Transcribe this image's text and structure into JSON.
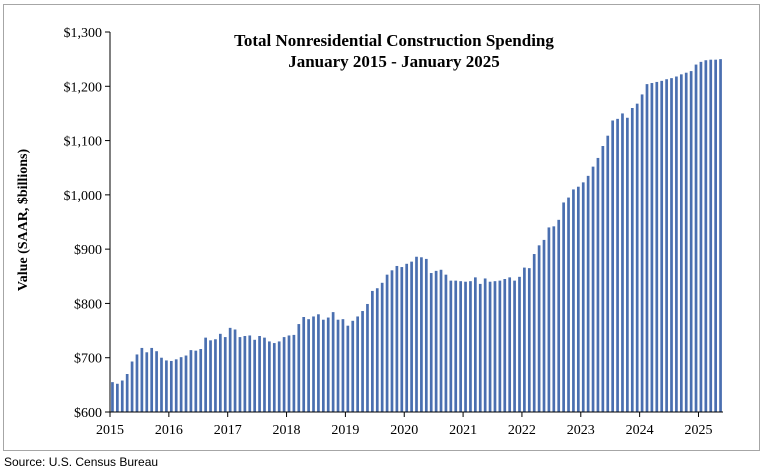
{
  "chart_data": {
    "type": "bar",
    "title": "Total Nonresidential Construction Spending",
    "subtitle": "January 2015 - January 2025",
    "ylabel": "Value (SAAR, $billions)",
    "xlabel": "",
    "ylim": [
      600,
      1300
    ],
    "y_ticks": [
      "$600",
      "$700",
      "$800",
      "$900",
      "$1,000",
      "$1,100",
      "$1,200",
      "$1,300"
    ],
    "x_ticks": [
      "2015",
      "2016",
      "2017",
      "2018",
      "2019",
      "2020",
      "2021",
      "2022",
      "2023",
      "2024",
      "2025"
    ],
    "bar_color": "#4a6fb0",
    "categories_start": "Jan 2015",
    "categories_end": "Jan 2025",
    "values": [
      655,
      652,
      658,
      670,
      693,
      706,
      718,
      710,
      718,
      712,
      700,
      695,
      694,
      697,
      701,
      704,
      714,
      713,
      716,
      737,
      732,
      734,
      744,
      738,
      755,
      752,
      738,
      740,
      741,
      733,
      740,
      737,
      730,
      727,
      730,
      738,
      741,
      742,
      762,
      775,
      771,
      776,
      780,
      770,
      774,
      784,
      770,
      771,
      759,
      768,
      776,
      786,
      799,
      823,
      828,
      838,
      853,
      861,
      869,
      867,
      873,
      877,
      886,
      885,
      882,
      856,
      860,
      862,
      853,
      842,
      842,
      841,
      840,
      841,
      848,
      836,
      846,
      840,
      841,
      842,
      845,
      848,
      842,
      849,
      866,
      865,
      891,
      907,
      917,
      940,
      942,
      954,
      986,
      995,
      1010,
      1015,
      1023,
      1035,
      1052,
      1068,
      1090,
      1109,
      1137,
      1140,
      1150,
      1142,
      1160,
      1168,
      1185,
      1204,
      1206,
      1208,
      1210,
      1213,
      1215,
      1218,
      1222,
      1225,
      1228,
      1240,
      1245,
      1248,
      1249,
      1249,
      1250
    ]
  },
  "source": "Source:  U.S. Census Bureau"
}
